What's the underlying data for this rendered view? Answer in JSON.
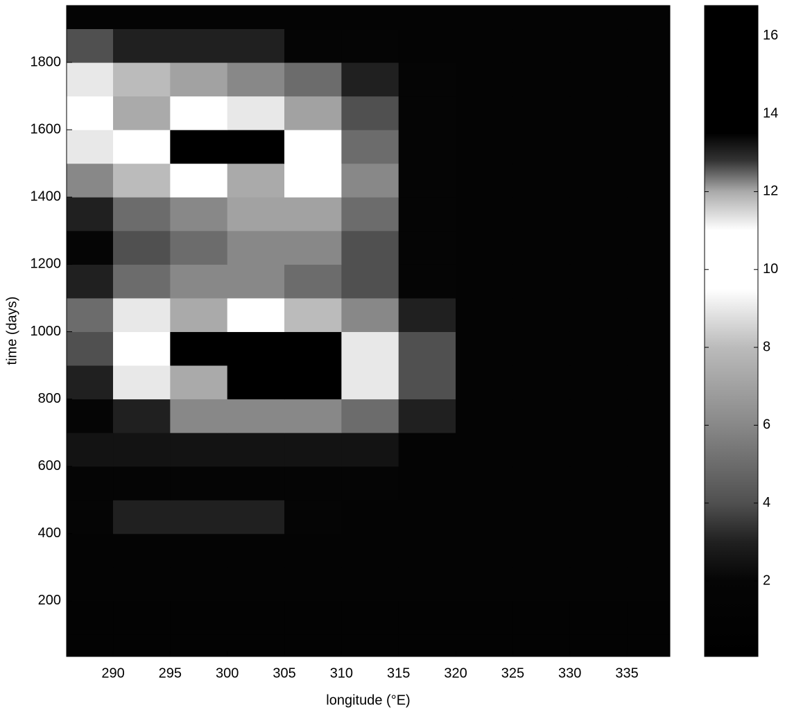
{
  "chart_data": {
    "type": "heatmap",
    "xlabel": "longitude (°E)",
    "ylabel": "time (days)",
    "xlim": [
      285.93,
      338.76
    ],
    "ylim": [
      35,
      1969
    ],
    "xticks": [
      290,
      295,
      300,
      305,
      310,
      315,
      320,
      325,
      330,
      335
    ],
    "yticks": [
      200,
      400,
      600,
      800,
      1000,
      1200,
      1400,
      1600,
      1800
    ],
    "xbins": [
      285.93,
      290,
      295,
      300,
      305,
      310,
      315,
      320,
      325,
      330,
      335,
      338.76
    ],
    "ybins": [
      35,
      100,
      200,
      300,
      400,
      500,
      600,
      700,
      800,
      900,
      1000,
      1100,
      1200,
      1300,
      1400,
      1500,
      1600,
      1700,
      1800,
      1900,
      1969
    ],
    "values": [
      [
        1,
        1,
        1,
        1,
        1,
        1,
        1,
        1,
        1,
        1,
        1
      ],
      [
        1,
        1,
        1,
        1,
        1,
        1,
        1,
        1,
        1,
        1,
        1
      ],
      [
        1.5,
        1.5,
        1.5,
        1.5,
        1.5,
        1.5,
        1.5,
        1.5,
        1.5,
        1.5,
        1.5
      ],
      [
        1.5,
        1.5,
        1.5,
        1.5,
        1.5,
        1.5,
        1.5,
        1.5,
        1.5,
        1.5,
        1.5
      ],
      [
        2,
        3,
        3,
        3,
        2,
        1.5,
        1.5,
        1.5,
        1.5,
        1.5,
        1.5
      ],
      [
        2,
        2,
        2,
        2,
        2,
        2,
        1.5,
        1.5,
        1.5,
        1.5,
        1.5
      ],
      [
        2.5,
        2.5,
        2.5,
        2.5,
        2.5,
        2.5,
        1.5,
        1.5,
        1.5,
        1.5,
        1.5
      ],
      [
        2,
        3,
        6,
        6,
        6,
        5,
        3,
        1.5,
        1.5,
        1.5,
        1.5
      ],
      [
        3,
        9,
        12,
        15,
        14,
        9,
        4,
        1.5,
        1.5,
        1.5,
        1.5
      ],
      [
        4,
        10,
        14,
        15,
        14,
        9,
        4,
        1.5,
        1.5,
        1.5,
        1.5
      ],
      [
        5,
        9,
        12,
        11,
        8,
        6,
        3,
        1.5,
        1.5,
        1.5,
        1.5
      ],
      [
        3,
        5,
        6,
        6,
        5,
        4,
        2,
        1.5,
        1.5,
        1.5,
        1.5
      ],
      [
        2,
        4,
        5,
        6,
        6,
        4,
        2,
        1.5,
        1.5,
        1.5,
        1.5
      ],
      [
        3,
        5,
        6,
        7,
        7,
        5,
        2,
        1.5,
        1.5,
        1.5,
        1.5
      ],
      [
        6,
        8,
        10,
        12,
        10,
        6,
        2,
        1.5,
        1.5,
        1.5,
        1.5
      ],
      [
        9,
        11,
        15,
        15,
        10,
        5,
        2,
        1.5,
        1.5,
        1.5,
        1.5
      ],
      [
        10,
        12,
        11,
        9,
        7,
        4,
        2,
        1.5,
        1.5,
        1.5,
        1.5
      ],
      [
        9,
        8,
        7,
        6,
        5,
        3,
        2,
        1.5,
        1.5,
        1.5,
        1.5
      ],
      [
        4,
        3,
        3,
        3,
        2,
        2,
        1.5,
        1.5,
        1.5,
        1.5,
        1.5
      ],
      [
        1.5,
        1.5,
        1.5,
        1.5,
        1.5,
        1.5,
        1.5,
        1.5,
        1.5,
        1.5,
        1.5
      ]
    ],
    "clim": [
      0.06,
      16.78
    ],
    "cticks": [
      2,
      4,
      6,
      8,
      10,
      12,
      14,
      16
    ],
    "colormap": [
      {
        "value": 0,
        "color": "#000000"
      },
      {
        "value": 2,
        "color": "#050505"
      },
      {
        "value": 3,
        "color": "#202020"
      },
      {
        "value": 4,
        "color": "#505050"
      },
      {
        "value": 6,
        "color": "#888888"
      },
      {
        "value": 8,
        "color": "#bbbbbb"
      },
      {
        "value": 9.5,
        "color": "#ffffff"
      },
      {
        "value": 11,
        "color": "#ffffff"
      },
      {
        "value": 12,
        "color": "#aaaaaa"
      },
      {
        "value": 12.8,
        "color": "#333333"
      },
      {
        "value": 13.5,
        "color": "#000000"
      },
      {
        "value": 17,
        "color": "#000000"
      }
    ]
  }
}
